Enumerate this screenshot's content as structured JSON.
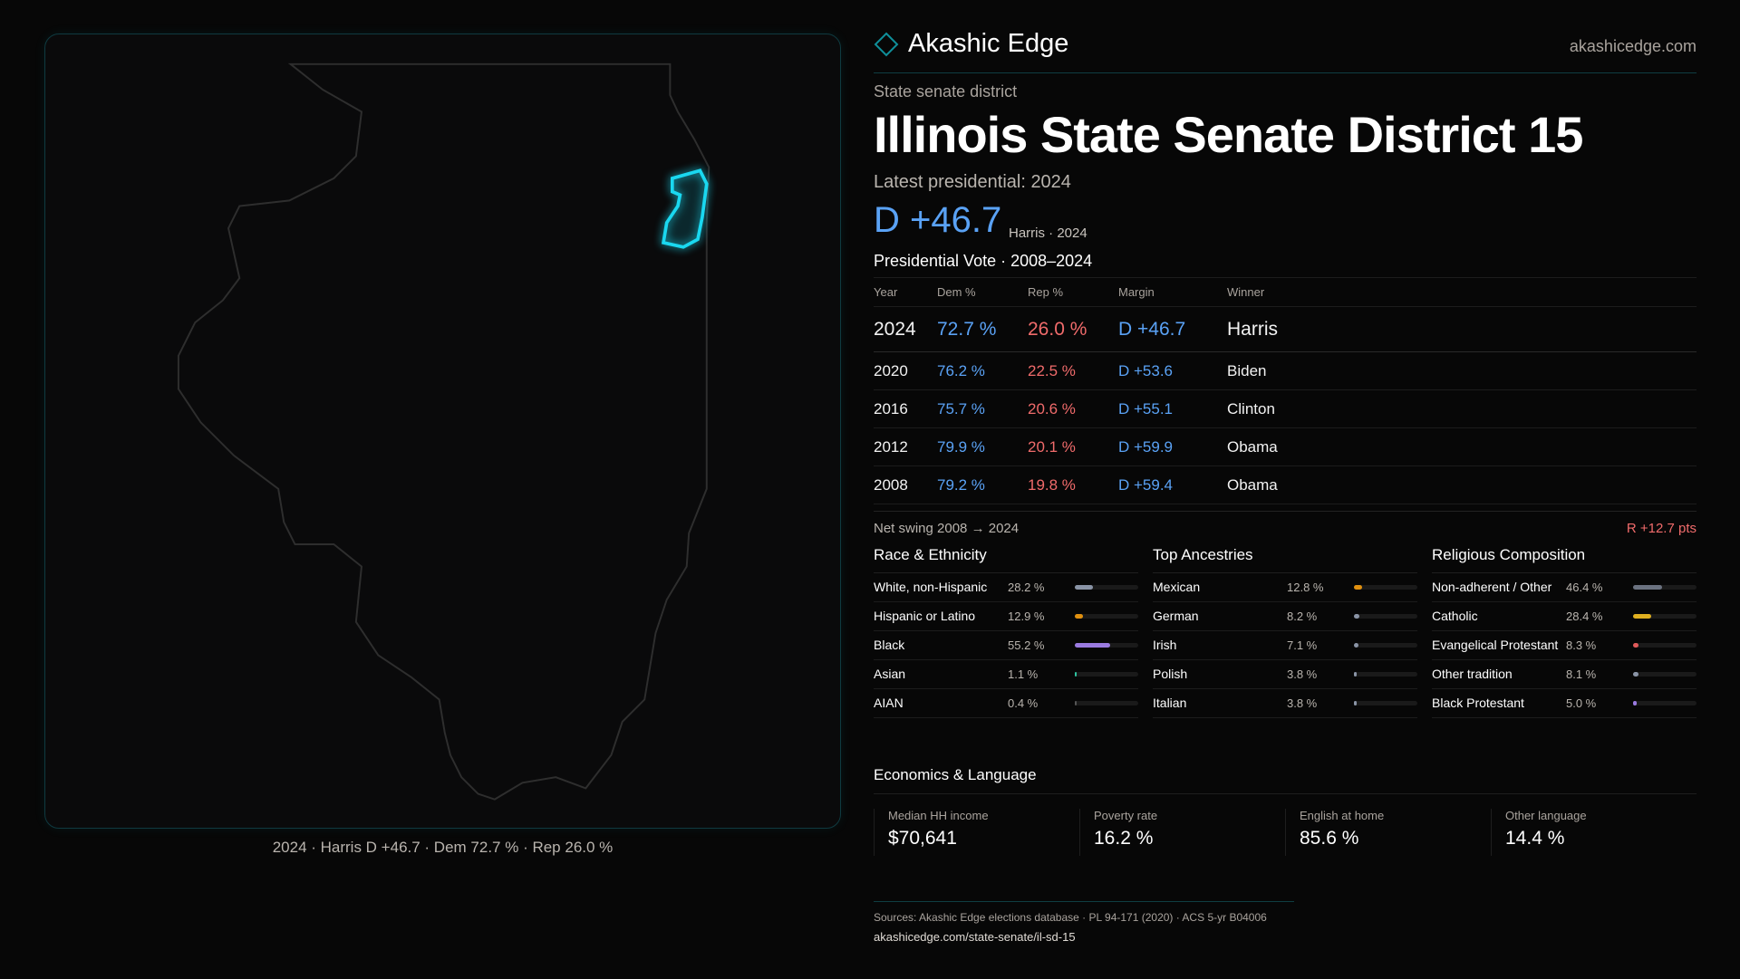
{
  "brand": {
    "name": "Akashic Edge",
    "site": "akashicedge.com",
    "accent": "#0f8f9a"
  },
  "district": {
    "kind": "State senate district",
    "title": "Illinois State Senate District 15",
    "latest": "Latest presidential: 2024",
    "margin": "D +46.7",
    "margin_sub": "Harris · 2024"
  },
  "map": {
    "caption": "2024 · Harris D +46.7 · Dem 72.7 % · Rep 26.0 %",
    "highlight_color": "#1ad8f0"
  },
  "votes": {
    "title": "Presidential Vote · 2008–2024",
    "headers": [
      "Year",
      "Dem %",
      "Rep %",
      "Margin",
      "Winner"
    ],
    "rows": [
      [
        "2024",
        "72.7 %",
        "26.0 %",
        "D +46.7",
        "Harris"
      ],
      [
        "2020",
        "76.2 %",
        "22.5 %",
        "D +53.6",
        "Biden"
      ],
      [
        "2016",
        "75.7 %",
        "20.6 %",
        "D +55.1",
        "Clinton"
      ],
      [
        "2012",
        "79.9 %",
        "20.1 %",
        "D +59.9",
        "Obama"
      ],
      [
        "2008",
        "79.2 %",
        "19.8 %",
        "D +59.4",
        "Obama"
      ]
    ],
    "swing_label": "Net swing 2008 → 2024",
    "swing_value": "R +12.7 pts"
  },
  "colors": {
    "dem": "#5aa2f5",
    "rep": "#f06b6b"
  },
  "demographics": [
    {
      "title": "Race & Ethnicity",
      "items": [
        {
          "label": "White, non-Hispanic",
          "pct": "28.2 %",
          "value": 28.2,
          "color": "#8a94a6"
        },
        {
          "label": "Hispanic or Latino",
          "pct": "12.9 %",
          "value": 12.9,
          "color": "#e0900f"
        },
        {
          "label": "Black",
          "pct": "55.2 %",
          "value": 55.2,
          "color": "#9a7ae0"
        },
        {
          "label": "Asian",
          "pct": "1.1 %",
          "value": 1.1,
          "color": "#2ec4a0"
        },
        {
          "label": "AIAN",
          "pct": "0.4 %",
          "value": 0.4,
          "color": "#555"
        }
      ]
    },
    {
      "title": "Top Ancestries",
      "items": [
        {
          "label": "Mexican",
          "pct": "12.8 %",
          "value": 12.8,
          "color": "#e0900f"
        },
        {
          "label": "German",
          "pct": "8.2 %",
          "value": 8.2,
          "color": "#8a94a6"
        },
        {
          "label": "Irish",
          "pct": "7.1 %",
          "value": 7.1,
          "color": "#8a94a6"
        },
        {
          "label": "Polish",
          "pct": "3.8 %",
          "value": 3.8,
          "color": "#8a94a6"
        },
        {
          "label": "Italian",
          "pct": "3.8 %",
          "value": 3.8,
          "color": "#8a94a6"
        }
      ]
    },
    {
      "title": "Religious Composition",
      "items": [
        {
          "label": "Non-adherent / Other",
          "pct": "46.4 %",
          "value": 46.4,
          "color": "#6b7280"
        },
        {
          "label": "Catholic",
          "pct": "28.4 %",
          "value": 28.4,
          "color": "#e0b020"
        },
        {
          "label": "Evangelical Protestant",
          "pct": "8.3 %",
          "value": 8.3,
          "color": "#e05a5a"
        },
        {
          "label": "Other tradition",
          "pct": "8.1 %",
          "value": 8.1,
          "color": "#8a94a6"
        },
        {
          "label": "Black Protestant",
          "pct": "5.0 %",
          "value": 5.0,
          "color": "#9a7ae0"
        }
      ]
    }
  ],
  "economics": {
    "title": "Economics & Language",
    "cards": [
      {
        "label": "Median HH income",
        "value": "$70,641"
      },
      {
        "label": "Poverty rate",
        "value": "16.2 %"
      },
      {
        "label": "English at home",
        "value": "85.6 %"
      },
      {
        "label": "Other language",
        "value": "14.4 %"
      }
    ]
  },
  "footer": {
    "sources": "Sources: Akashic Edge elections database · PL 94-171 (2020) · ACS 5-yr B04006",
    "link": "akashicedge.com/state-senate/il-sd-15"
  }
}
